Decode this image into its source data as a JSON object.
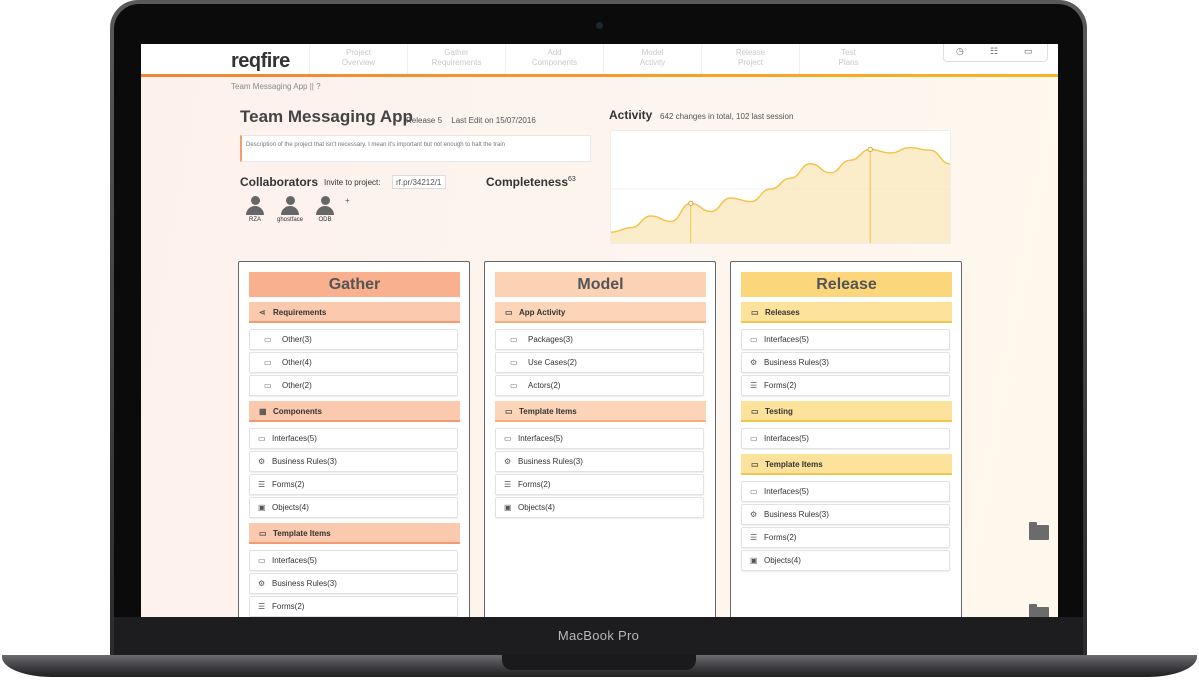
{
  "device": {
    "label": "MacBook Pro"
  },
  "app": {
    "logo": "reqfire"
  },
  "nav": [
    {
      "line1": "Project",
      "line2": "Overview"
    },
    {
      "line1": "Gather",
      "line2": "Requirements"
    },
    {
      "line1": "Add",
      "line2": "Components"
    },
    {
      "line1": "Model",
      "line2": "Activity"
    },
    {
      "line1": "Release",
      "line2": "Project"
    },
    {
      "line1": "Test",
      "line2": "Plans"
    }
  ],
  "nav_icons": [
    "clock-icon",
    "sitemap-icon",
    "chat-icon"
  ],
  "breadcrumb": "Team Messaging App || ?",
  "project": {
    "title": "Team Messaging App",
    "release": "Release 5",
    "last_edit": "Last Edit on 15/07/2016",
    "description": "Description of the project that isn't necessary. I mean it's important but not enough to halt the train"
  },
  "collaborators": {
    "title": "Collaborators",
    "invite_label": "Invite to project:",
    "invite_value": "rf.pr/34212/1",
    "add_symbol": "+",
    "people": [
      "RZA",
      "ghostface",
      "ODB"
    ]
  },
  "completeness": {
    "label": "Completeness",
    "value": "63"
  },
  "activity": {
    "title": "Activity",
    "subtitle": "642 changes in total, 102 last session"
  },
  "chart_data": {
    "type": "area",
    "x": [
      0,
      1,
      2,
      3,
      4,
      5,
      6,
      7,
      8,
      9,
      10,
      11,
      12,
      13,
      14,
      15,
      16,
      17
    ],
    "values": [
      12,
      17,
      30,
      24,
      44,
      35,
      50,
      46,
      60,
      72,
      88,
      78,
      92,
      104,
      100,
      106,
      103,
      88
    ],
    "highlight_points": [
      4,
      13
    ],
    "ylim": [
      0,
      120
    ],
    "grid": true,
    "colors": {
      "line": "#f5c34d",
      "fill": "#fbe6b4",
      "marker": "#e8a23a"
    }
  },
  "columns": {
    "gather": {
      "title": "Gather",
      "sections": [
        {
          "label": "Requirements",
          "icon": "share-icon",
          "glyph": "⋖",
          "items": [
            {
              "label": "Other(3)",
              "icon": "laptop-icon",
              "glyph": "▭"
            },
            {
              "label": "Other(4)",
              "icon": "laptop-icon",
              "glyph": "▭"
            },
            {
              "label": "Other(2)",
              "icon": "laptop-icon",
              "glyph": "▭"
            }
          ]
        },
        {
          "label": "Components",
          "icon": "grid-icon",
          "glyph": "▦",
          "items": [
            {
              "label": "Interfaces(5)",
              "icon": "laptop-icon",
              "glyph": "▭"
            },
            {
              "label": "Business Rules(3)",
              "icon": "gears-icon",
              "glyph": "⚙"
            },
            {
              "label": "Forms(2)",
              "icon": "list-icon",
              "glyph": "☰"
            },
            {
              "label": "Objects(4)",
              "icon": "box-icon",
              "glyph": "▣"
            }
          ]
        },
        {
          "label": "Template Items",
          "icon": "laptop-icon",
          "glyph": "▭",
          "items": [
            {
              "label": "Interfaces(5)",
              "icon": "laptop-icon",
              "glyph": "▭"
            },
            {
              "label": "Business Rules(3)",
              "icon": "gears-icon",
              "glyph": "⚙"
            },
            {
              "label": "Forms(2)",
              "icon": "list-icon",
              "glyph": "☰"
            }
          ]
        }
      ]
    },
    "model": {
      "title": "Model",
      "sections": [
        {
          "label": "App Activity",
          "icon": "laptop-icon",
          "glyph": "▭",
          "items": [
            {
              "label": "Packages(3)",
              "icon": "laptop-icon",
              "glyph": "▭"
            },
            {
              "label": "Use Cases(2)",
              "icon": "laptop-icon",
              "glyph": "▭"
            },
            {
              "label": "Actors(2)",
              "icon": "laptop-icon",
              "glyph": "▭"
            }
          ]
        },
        {
          "label": "Template Items",
          "icon": "laptop-icon",
          "glyph": "▭",
          "items": [
            {
              "label": "Interfaces(5)",
              "icon": "laptop-icon",
              "glyph": "▭"
            },
            {
              "label": "Business Rules(3)",
              "icon": "gears-icon",
              "glyph": "⚙"
            },
            {
              "label": "Forms(2)",
              "icon": "list-icon",
              "glyph": "☰"
            },
            {
              "label": "Objects(4)",
              "icon": "box-icon",
              "glyph": "▣"
            }
          ]
        }
      ]
    },
    "release": {
      "title": "Release",
      "sections": [
        {
          "label": "Releases",
          "icon": "laptop-icon",
          "glyph": "▭",
          "items": [
            {
              "label": "Interfaces(5)",
              "icon": "laptop-icon",
              "glyph": "▭"
            },
            {
              "label": "Business Rules(3)",
              "icon": "gears-icon",
              "glyph": "⚙"
            },
            {
              "label": "Forms(2)",
              "icon": "list-icon",
              "glyph": "☰"
            }
          ]
        },
        {
          "label": "Testing",
          "icon": "laptop-icon",
          "glyph": "▭",
          "items": [
            {
              "label": "Interfaces(5)",
              "icon": "laptop-icon",
              "glyph": "▭"
            }
          ]
        },
        {
          "label": "Template Items",
          "icon": "laptop-icon",
          "glyph": "▭",
          "items": [
            {
              "label": "Interfaces(5)",
              "icon": "laptop-icon",
              "glyph": "▭"
            },
            {
              "label": "Business Rules(3)",
              "icon": "gears-icon",
              "glyph": "⚙"
            },
            {
              "label": "Forms(2)",
              "icon": "list-icon",
              "glyph": "☰"
            },
            {
              "label": "Objects(4)",
              "icon": "box-icon",
              "glyph": "▣"
            }
          ]
        }
      ]
    }
  }
}
